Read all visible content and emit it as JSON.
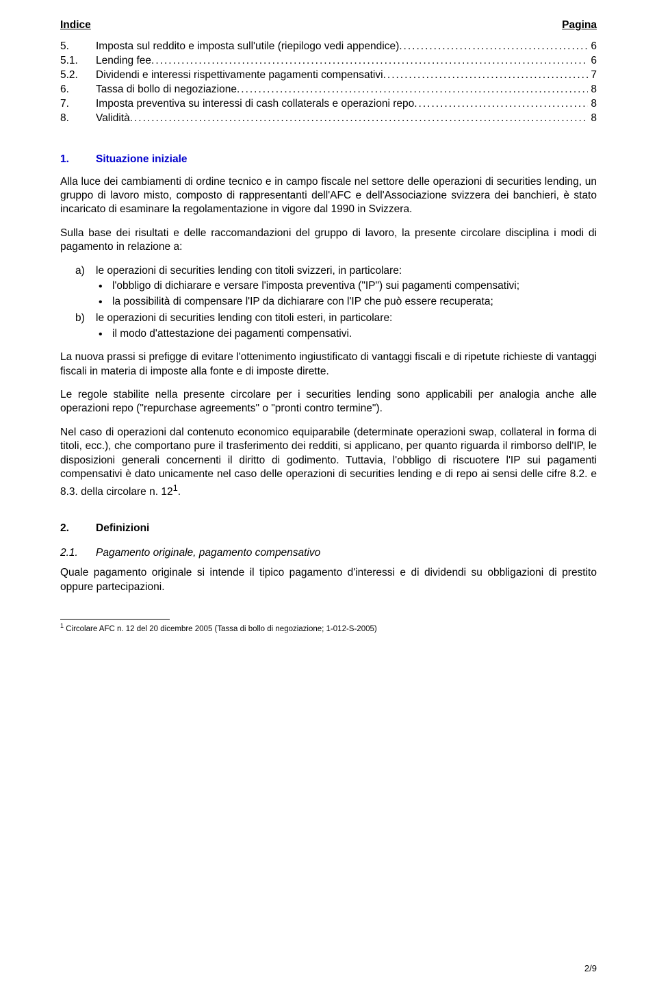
{
  "toc": {
    "header_left": "Indice",
    "header_right": "Pagina",
    "items": [
      {
        "num": "5.",
        "label": "Imposta sul reddito e imposta sull'utile (riepilogo vedi appendice)",
        "page": "6"
      },
      {
        "num": "5.1.",
        "label": "Lending fee",
        "page": "6"
      },
      {
        "num": "5.2.",
        "label": "Dividendi e interessi rispettivamente pagamenti compensativi",
        "page": "7"
      },
      {
        "num": "6.",
        "label": "Tassa di bollo di negoziazione",
        "page": "8"
      },
      {
        "num": "7.",
        "label": "Imposta preventiva su interessi di cash collaterals e operazioni repo",
        "page": "8"
      },
      {
        "num": "8.",
        "label": "Validità",
        "page": "8"
      }
    ]
  },
  "section1": {
    "num": "1.",
    "title": "Situazione iniziale",
    "p1": "Alla luce dei cambiamenti di ordine tecnico e in campo fiscale nel settore delle operazioni di securities lending, un gruppo di lavoro misto, composto di rappresentanti dell'AFC e dell'Associazione svizzera dei banchieri, è stato incaricato di esaminare la regolamentazione in vigore dal 1990 in Svizzera.",
    "p2": "Sulla base dei risultati e delle raccomandazioni del gruppo di lavoro, la presente circolare disciplina i modi di pagamento in relazione a:",
    "list": {
      "a_marker": "a)",
      "a_text": "le operazioni di securities lending con titoli svizzeri, in particolare:",
      "a_b1": "l'obbligo di dichiarare e versare l'imposta preventiva (\"IP\") sui pagamenti compensativi;",
      "a_b2": "la possibilità di compensare l'IP da dichiarare con l'IP che può essere recuperata;",
      "b_marker": "b)",
      "b_text": "le operazioni di securities lending con titoli esteri, in particolare:",
      "b_b1": "il modo d'attestazione dei pagamenti compensativi."
    },
    "p3": "La nuova prassi si prefigge di evitare l'ottenimento ingiustificato di vantaggi fiscali e di ripetute richieste di vantaggi fiscali in materia di imposte alla fonte e di imposte dirette.",
    "p4": "Le regole stabilite nella presente circolare per i securities lending sono applicabili per analogia anche alle operazioni repo (\"repurchase agreements\" o \"pronti contro termine\").",
    "p5": "Nel caso di operazioni dal contenuto economico equiparabile (determinate operazioni swap, collateral in forma di titoli, ecc.), che comportano pure il trasferimento dei redditi, si applicano, per quanto riguarda il rimborso dell'IP, le disposizioni generali concernenti il diritto di godimento. Tuttavia, l'obbligo di riscuotere l'IP sui pagamenti compensativi è dato unicamente nel caso delle operazioni di securities lending e di repo ai sensi delle cifre 8.2. e 8.3. della circolare n. 12",
    "p5_sup": "1",
    "p5_tail": "."
  },
  "section2": {
    "num": "2.",
    "title": "Definizioni",
    "sub_num": "2.1.",
    "sub_title": "Pagamento originale, pagamento compensativo",
    "p1": "Quale pagamento originale si intende il tipico pagamento d'interessi e di dividendi su obbligazioni di prestito oppure partecipazioni."
  },
  "footnote": {
    "marker": "1",
    "text": " Circolare AFC n. 12 del 20 dicembre 2005 (Tassa di bollo di negoziazione; 1-012-S-2005)"
  },
  "pagenum": "2/9",
  "colors": {
    "link": "#0000cc",
    "text": "#000000",
    "bg": "#ffffff"
  }
}
